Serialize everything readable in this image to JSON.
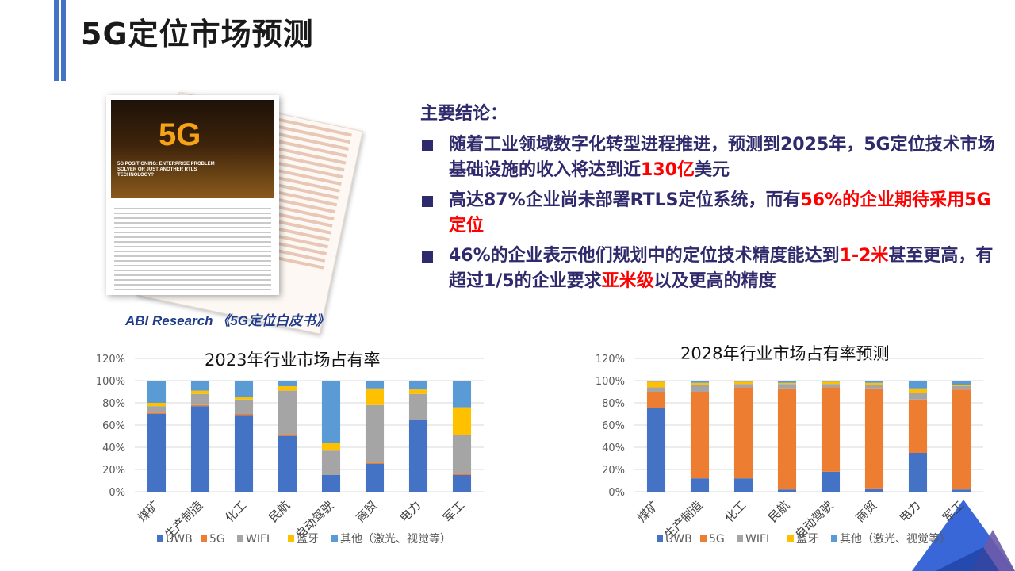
{
  "header": {
    "title": "5G定位市场预测"
  },
  "report": {
    "cover_title": "5G",
    "cover_subtitle": "5G POSITIONING: ENTERPRISE PROBLEM SOLVER OR JUST ANOTHER RTLS TECHNOLOGY?",
    "caption": "ABI Research 《5G定位白皮书》"
  },
  "summary": {
    "heading": "主要结论：",
    "bullets": [
      {
        "parts": [
          "随着工业领域数字化转型进程推进，预测到2025年，5G定位技术市场基础设施的收入将达到近",
          "130亿",
          "美元"
        ]
      },
      {
        "parts": [
          "高达87%企业尚未部署RTLS定位系统，而有",
          "56%的企业期待采用5G定位",
          ""
        ]
      },
      {
        "parts": [
          "46%的企业表示他们规划中的定位技术精度能达到",
          "1-2米",
          "甚至更高，有超过1/5的企业要求",
          "亚米级",
          "以及更高的精度"
        ]
      }
    ]
  },
  "colors": {
    "UWB": "#4472c4",
    "5G": "#ed7d31",
    "WIFI": "#a5a5a5",
    "蓝牙": "#ffc000",
    "其他": "#5b9bd5"
  },
  "chart_data": [
    {
      "type": "bar",
      "stacked": true,
      "title": "2023年行业市场占有率",
      "categories": [
        "煤矿",
        "生产制造",
        "化工",
        "民航",
        "自动驾驶",
        "商贸",
        "电力",
        "军工"
      ],
      "yticks": [
        "0%",
        "20%",
        "40%",
        "60%",
        "80%",
        "100%",
        "120%"
      ],
      "ylim": [
        0,
        120
      ],
      "legend_position": "bottom",
      "series": [
        {
          "name": "UWB",
          "values": [
            70,
            77,
            69,
            50,
            15,
            25,
            65,
            15
          ]
        },
        {
          "name": "5G",
          "values": [
            1,
            1,
            1,
            1,
            0,
            1,
            0,
            1
          ]
        },
        {
          "name": "WIFI",
          "values": [
            6,
            10,
            13,
            40,
            22,
            52,
            23,
            35
          ]
        },
        {
          "name": "蓝牙",
          "values": [
            3,
            3,
            2,
            4,
            7,
            15,
            4,
            25
          ]
        },
        {
          "name": "其他（激光、视觉等）",
          "values": [
            20,
            9,
            15,
            5,
            56,
            7,
            8,
            24
          ]
        }
      ]
    },
    {
      "type": "bar",
      "stacked": true,
      "title": "2028年行业市场占有率预测",
      "categories": [
        "煤矿",
        "生产制造",
        "化工",
        "民航",
        "自动驾驶",
        "商贸",
        "电力",
        "军工"
      ],
      "yticks": [
        "0%",
        "20%",
        "40%",
        "60%",
        "80%",
        "100%",
        "120%"
      ],
      "ylim": [
        0,
        120
      ],
      "legend_position": "bottom",
      "series": [
        {
          "name": "UWB",
          "values": [
            75,
            12,
            12,
            2,
            18,
            3,
            35,
            2
          ]
        },
        {
          "name": "5G",
          "values": [
            15,
            78,
            82,
            91,
            76,
            90,
            48,
            90
          ]
        },
        {
          "name": "WIFI",
          "values": [
            4,
            6,
            3,
            4,
            3,
            3,
            6,
            3
          ]
        },
        {
          "name": "蓝牙",
          "values": [
            5,
            2,
            2,
            1,
            2,
            2,
            4,
            1
          ]
        },
        {
          "name": "其他（激光、视觉等）",
          "values": [
            1,
            2,
            1,
            2,
            1,
            2,
            7,
            4
          ]
        }
      ]
    }
  ]
}
